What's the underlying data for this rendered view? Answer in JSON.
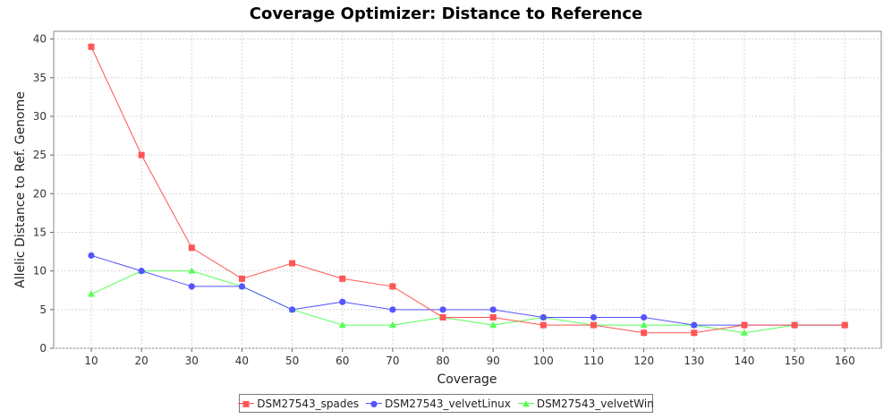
{
  "chart_data": {
    "type": "line",
    "title": "Coverage Optimizer: Distance to Reference",
    "xlabel": "Coverage",
    "ylabel": "Allelic Distance to Ref. Genome",
    "categories": [
      "10",
      "20",
      "30",
      "40",
      "50",
      "60",
      "70",
      "80",
      "90",
      "100",
      "110",
      "120",
      "130",
      "140",
      "150",
      "160"
    ],
    "ylim": [
      0,
      41
    ],
    "yticks": [
      0,
      5,
      10,
      15,
      20,
      25,
      30,
      35,
      40
    ],
    "grid": true,
    "legend_position": "bottom",
    "series": [
      {
        "name": "DSM27543_spades",
        "color": "#ff5555",
        "marker": "square",
        "values": [
          39,
          25,
          13,
          9,
          11,
          9,
          8,
          4,
          4,
          3,
          3,
          2,
          2,
          3,
          3,
          3
        ]
      },
      {
        "name": "DSM27543_velvetLinux",
        "color": "#5555ff",
        "marker": "circle",
        "values": [
          12,
          10,
          8,
          8,
          5,
          6,
          5,
          5,
          5,
          4,
          4,
          4,
          3,
          3,
          3,
          3
        ]
      },
      {
        "name": "DSM27543_velvetWin",
        "color": "#55ff55",
        "marker": "triangle",
        "values": [
          7,
          10,
          10,
          8,
          5,
          3,
          3,
          4,
          3,
          4,
          3,
          3,
          3,
          2,
          3,
          3
        ]
      }
    ]
  }
}
